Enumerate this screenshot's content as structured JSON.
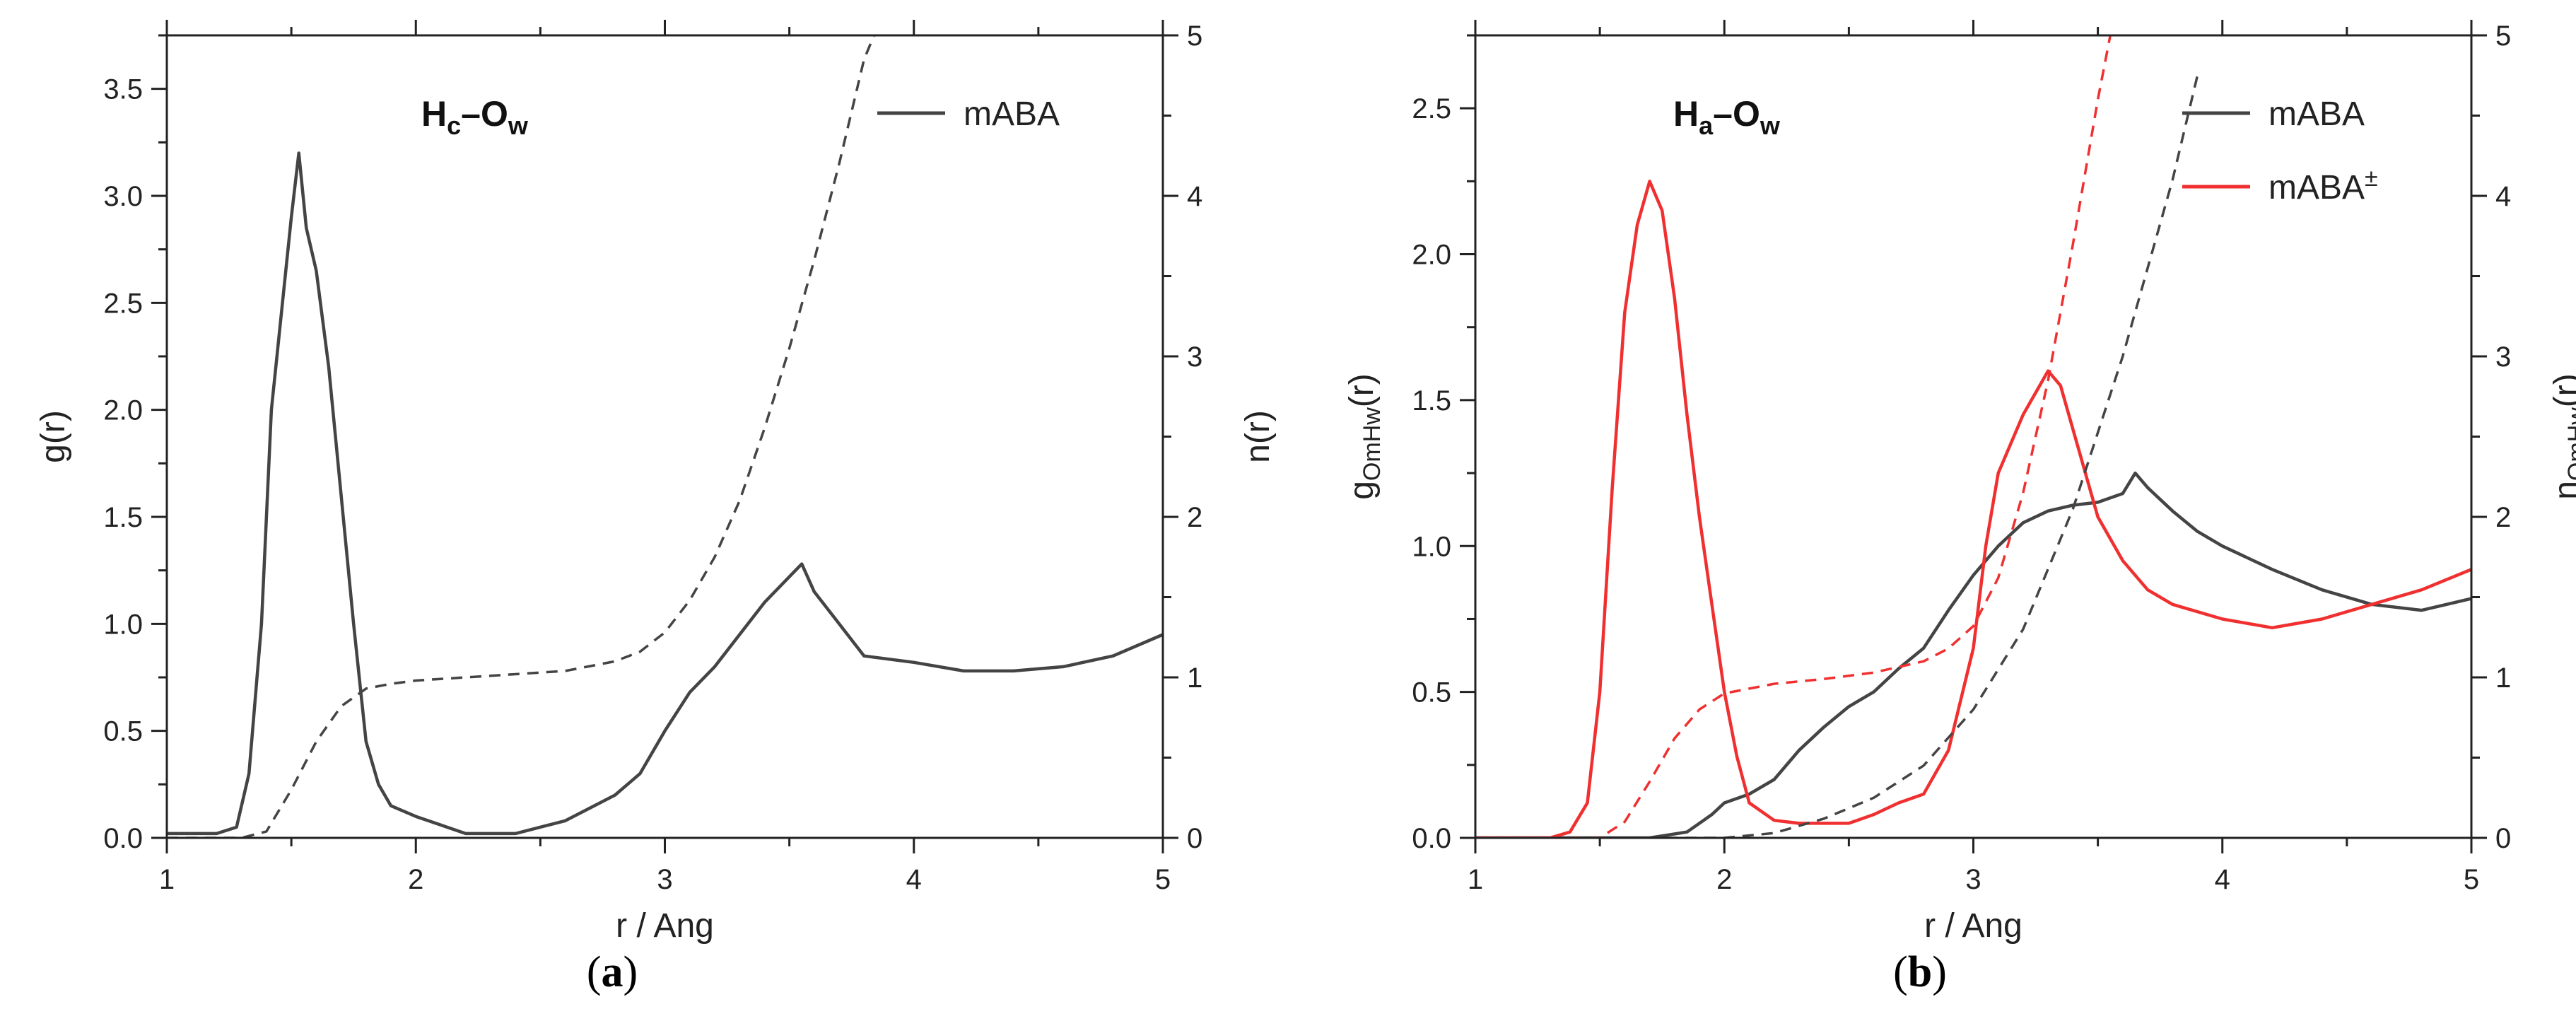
{
  "chart_data": [
    {
      "id": "a",
      "type": "line",
      "caption": "a",
      "xlabel": "r / Ang",
      "ylabel_left": "g(r)",
      "ylabel_right": "n(r)",
      "xlim": [
        1,
        5
      ],
      "ylim_left": [
        0,
        3.75
      ],
      "ylim_right": [
        0,
        5
      ],
      "xticks": [
        "1",
        "2",
        "3",
        "4",
        "5"
      ],
      "yticks_left": [
        "0.0",
        "0.5",
        "1.0",
        "1.5",
        "2.0",
        "2.5",
        "3.0",
        "3.5"
      ],
      "yticks_right": [
        "0",
        "1",
        "2",
        "3",
        "4",
        "5"
      ],
      "annotation": {
        "main": "H",
        "sub1": "c",
        "dash": "–O",
        "sub2": "w"
      },
      "legend": [
        {
          "label": "mABA",
          "sup": "",
          "color": "#444444"
        }
      ],
      "series": [
        {
          "name": "mABA g(r)",
          "axis": "left",
          "style": "solid",
          "color": "#444444",
          "x": [
            1.0,
            1.2,
            1.28,
            1.33,
            1.38,
            1.42,
            1.46,
            1.5,
            1.53,
            1.56,
            1.6,
            1.65,
            1.7,
            1.75,
            1.8,
            1.85,
            1.9,
            2.0,
            2.1,
            2.2,
            2.4,
            2.6,
            2.8,
            2.9,
            3.0,
            3.1,
            3.2,
            3.3,
            3.4,
            3.5,
            3.55,
            3.6,
            3.7,
            3.8,
            4.0,
            4.2,
            4.4,
            4.6,
            4.8,
            5.0
          ],
          "y": [
            0.02,
            0.02,
            0.05,
            0.3,
            1.0,
            2.0,
            2.45,
            2.9,
            3.2,
            2.85,
            2.65,
            2.2,
            1.6,
            1.0,
            0.45,
            0.25,
            0.15,
            0.1,
            0.06,
            0.02,
            0.02,
            0.08,
            0.2,
            0.3,
            0.5,
            0.68,
            0.8,
            0.95,
            1.1,
            1.22,
            1.28,
            1.15,
            1.0,
            0.85,
            0.82,
            0.78,
            0.78,
            0.8,
            0.85,
            0.95
          ]
        },
        {
          "name": "mABA n(r)",
          "axis": "right",
          "style": "dashed",
          "color": "#444444",
          "x": [
            1.0,
            1.2,
            1.3,
            1.4,
            1.5,
            1.6,
            1.7,
            1.8,
            1.9,
            2.0,
            2.2,
            2.4,
            2.6,
            2.8,
            2.9,
            3.0,
            3.1,
            3.2,
            3.3,
            3.4,
            3.5,
            3.6,
            3.7,
            3.8,
            3.84
          ],
          "y": [
            0.0,
            0.0,
            0.0,
            0.04,
            0.3,
            0.6,
            0.82,
            0.93,
            0.96,
            0.98,
            1.0,
            1.02,
            1.04,
            1.1,
            1.16,
            1.28,
            1.48,
            1.75,
            2.1,
            2.55,
            3.05,
            3.6,
            4.2,
            4.85,
            5.0
          ]
        }
      ]
    },
    {
      "id": "b",
      "type": "line",
      "caption": "b",
      "xlabel": "r / Ang",
      "ylabel_left": {
        "main": "g",
        "sub": "OmHw",
        "tail": "(r)"
      },
      "ylabel_right": {
        "main": "n",
        "sub": "OmHw",
        "tail": "(r)"
      },
      "xlim": [
        1,
        5
      ],
      "ylim_left": [
        0,
        2.75
      ],
      "ylim_right": [
        0,
        5
      ],
      "xticks": [
        "1",
        "2",
        "3",
        "4",
        "5"
      ],
      "yticks_left": [
        "0.0",
        "0.5",
        "1.0",
        "1.5",
        "2.0",
        "2.5"
      ],
      "yticks_right": [
        "0",
        "1",
        "2",
        "3",
        "4",
        "5"
      ],
      "annotation": {
        "main": "H",
        "sub1": "a",
        "dash": "–O",
        "sub2": "w"
      },
      "legend": [
        {
          "label": "mABA",
          "sup": "",
          "color": "#444444"
        },
        {
          "label": "mABA",
          "sup": "±",
          "color": "#f03030"
        }
      ],
      "series": [
        {
          "name": "mABA g(r)",
          "axis": "left",
          "style": "solid",
          "color": "#444444",
          "x": [
            1.0,
            1.7,
            1.85,
            1.95,
            2.0,
            2.1,
            2.2,
            2.3,
            2.4,
            2.5,
            2.6,
            2.7,
            2.8,
            2.9,
            3.0,
            3.1,
            3.2,
            3.3,
            3.4,
            3.5,
            3.6,
            3.65,
            3.7,
            3.8,
            3.9,
            4.0,
            4.2,
            4.4,
            4.6,
            4.8,
            5.0
          ],
          "y": [
            0.0,
            0.0,
            0.02,
            0.08,
            0.12,
            0.15,
            0.2,
            0.3,
            0.38,
            0.45,
            0.5,
            0.58,
            0.65,
            0.78,
            0.9,
            1.0,
            1.08,
            1.12,
            1.14,
            1.15,
            1.18,
            1.25,
            1.2,
            1.12,
            1.05,
            1.0,
            0.92,
            0.85,
            0.8,
            0.78,
            0.82
          ]
        },
        {
          "name": "mABA± g(r)",
          "axis": "left",
          "style": "solid",
          "color": "#f03030",
          "x": [
            1.0,
            1.3,
            1.38,
            1.45,
            1.5,
            1.55,
            1.6,
            1.65,
            1.7,
            1.75,
            1.8,
            1.85,
            1.9,
            1.95,
            2.0,
            2.05,
            2.1,
            2.2,
            2.3,
            2.4,
            2.5,
            2.6,
            2.7,
            2.8,
            2.9,
            3.0,
            3.05,
            3.1,
            3.2,
            3.3,
            3.35,
            3.4,
            3.5,
            3.6,
            3.7,
            3.8,
            4.0,
            4.2,
            4.4,
            4.6,
            4.8,
            5.0
          ],
          "y": [
            0.0,
            0.0,
            0.02,
            0.12,
            0.5,
            1.2,
            1.8,
            2.1,
            2.25,
            2.15,
            1.85,
            1.45,
            1.1,
            0.8,
            0.5,
            0.28,
            0.12,
            0.06,
            0.05,
            0.05,
            0.05,
            0.08,
            0.12,
            0.15,
            0.3,
            0.65,
            1.0,
            1.25,
            1.45,
            1.6,
            1.55,
            1.4,
            1.1,
            0.95,
            0.85,
            0.8,
            0.75,
            0.72,
            0.75,
            0.8,
            0.85,
            0.92
          ]
        },
        {
          "name": "mABA n(r)",
          "axis": "right",
          "style": "dashed",
          "color": "#444444",
          "x": [
            1.0,
            2.0,
            2.2,
            2.4,
            2.6,
            2.8,
            3.0,
            3.2,
            3.4,
            3.6,
            3.8,
            3.9
          ],
          "y": [
            0.0,
            0.0,
            0.03,
            0.12,
            0.25,
            0.45,
            0.8,
            1.3,
            2.05,
            3.0,
            4.1,
            4.75
          ]
        },
        {
          "name": "mABA± n(r)",
          "axis": "right",
          "style": "dashed",
          "color": "#f03030",
          "x": [
            1.0,
            1.5,
            1.6,
            1.7,
            1.8,
            1.9,
            2.0,
            2.2,
            2.4,
            2.6,
            2.8,
            2.9,
            3.0,
            3.1,
            3.2,
            3.3,
            3.4,
            3.5,
            3.55
          ],
          "y": [
            0.0,
            0.0,
            0.1,
            0.35,
            0.62,
            0.8,
            0.9,
            0.96,
            0.99,
            1.03,
            1.1,
            1.18,
            1.32,
            1.62,
            2.15,
            2.85,
            3.7,
            4.6,
            5.0
          ]
        }
      ]
    }
  ]
}
